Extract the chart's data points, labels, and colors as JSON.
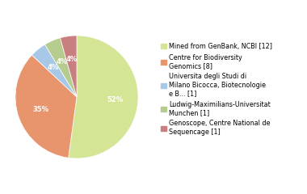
{
  "labels": [
    "Mined from GenBank, NCBI [12]",
    "Centre for Biodiversity\nGenomics [8]",
    "Universita degli Studi di\nMilano Bicocca, Biotecnologie\ne B... [1]",
    "Ludwig-Maximilians-Universitat\nMunchen [1]",
    "Genoscope, Centre National de\nSequencage [1]"
  ],
  "values": [
    12,
    8,
    1,
    1,
    1
  ],
  "colors": [
    "#d4e696",
    "#e8956d",
    "#a8c8e8",
    "#b5cc8e",
    "#c97f7f"
  ],
  "startangle": 90,
  "background_color": "#ffffff",
  "pct_fontsize": 6.0,
  "legend_fontsize": 5.8
}
